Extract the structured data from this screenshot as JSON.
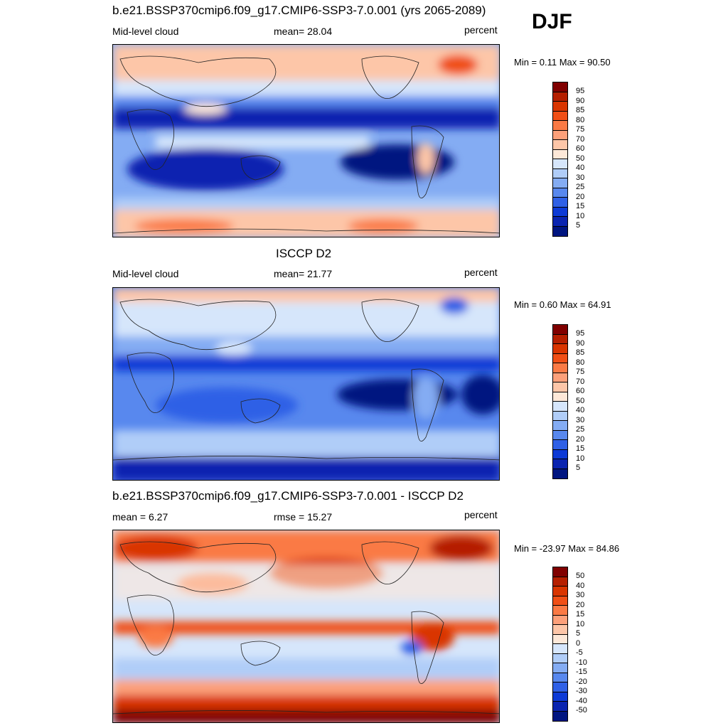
{
  "season": "DJF",
  "panels": [
    {
      "title": "b.e21.BSSP370cmip6.f09_g17.CMIP6-SSP3-7.0.001 (yrs 2065-2089)",
      "left_label": "Mid-level cloud",
      "center_label": "mean=  28.04",
      "units": "percent",
      "minmax": "Min =   0.11 Max =  90.50"
    },
    {
      "title": "ISCCP D2",
      "left_label": "Mid-level cloud",
      "center_label": "mean=  21.77",
      "units": "percent",
      "minmax": "Min =   0.60 Max =  64.91"
    },
    {
      "title": "b.e21.BSSP370cmip6.f09_g17.CMIP6-SSP3-7.0.001 - ISCCP D2",
      "left_label": "mean =   6.27",
      "center_label": "rmse =  15.27",
      "units": "percent",
      "minmax": "Min = -23.97 Max =  84.86"
    }
  ],
  "chart_data": [
    {
      "type": "heatmap",
      "variable": "Mid-level cloud",
      "units": "percent",
      "mean": 28.04,
      "min": 0.11,
      "max": 90.5,
      "colorbar_levels": [
        "95",
        "90",
        "85",
        "80",
        "75",
        "70",
        "60",
        "50",
        "40",
        "30",
        "25",
        "20",
        "15",
        "10",
        "5"
      ]
    },
    {
      "type": "heatmap",
      "variable": "Mid-level cloud",
      "units": "percent",
      "mean": 21.77,
      "min": 0.6,
      "max": 64.91,
      "colorbar_levels": [
        "95",
        "90",
        "85",
        "80",
        "75",
        "70",
        "60",
        "50",
        "40",
        "30",
        "25",
        "20",
        "15",
        "10",
        "5"
      ]
    },
    {
      "type": "heatmap",
      "units": "percent",
      "mean": 6.27,
      "rmse": 15.27,
      "min": -23.97,
      "max": 84.86,
      "colorbar_levels": [
        "50",
        "40",
        "30",
        "20",
        "15",
        "10",
        "5",
        "0",
        "-5",
        "-10",
        "-15",
        "-20",
        "-30",
        "-40",
        "-50"
      ]
    }
  ],
  "colors": {
    "colorbar": [
      "#800000",
      "#b51f00",
      "#d93500",
      "#f04f16",
      "#fa7a45",
      "#fca07a",
      "#fdc6a8",
      "#fde8d8",
      "#d6e6fb",
      "#b0cdf8",
      "#84acf3",
      "#5888ee",
      "#2f60e6",
      "#0d3ad6",
      "#0a24b0",
      "#001580"
    ]
  }
}
